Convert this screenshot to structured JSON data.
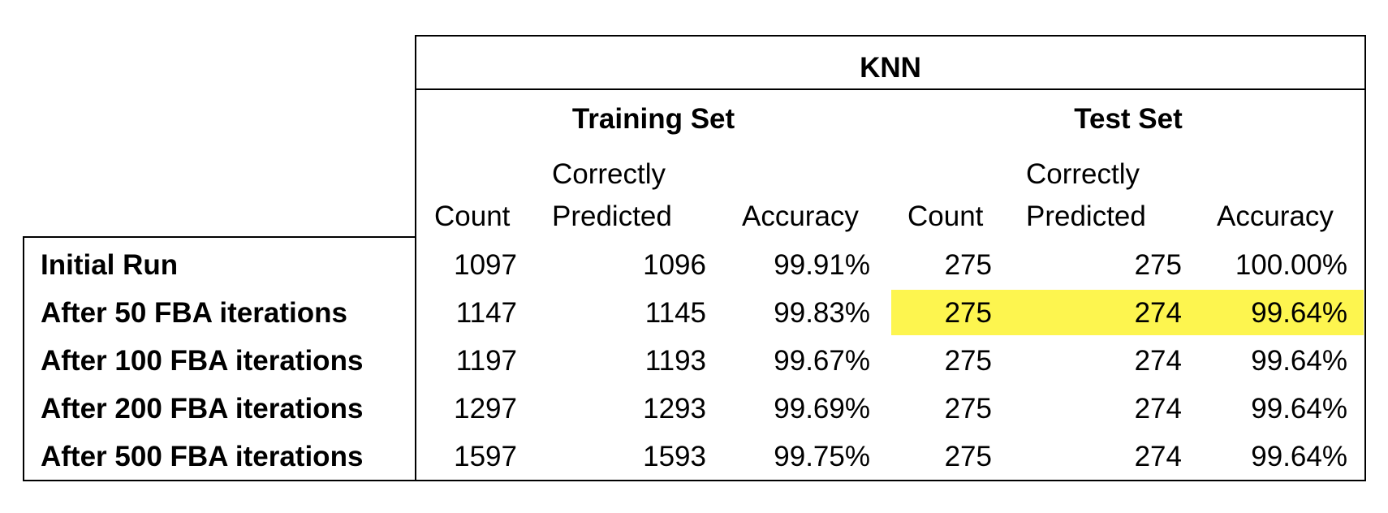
{
  "chart_data": {
    "type": "table",
    "title": "KNN",
    "groups": [
      "Training Set",
      "Test Set"
    ],
    "column_headers": [
      {
        "top": "",
        "bottom": "Count"
      },
      {
        "top": "Correctly",
        "bottom": "Predicted"
      },
      {
        "top": "",
        "bottom": "Accuracy"
      },
      {
        "top": "",
        "bottom": "Count"
      },
      {
        "top": "Correctly",
        "bottom": "Predicted"
      },
      {
        "top": "",
        "bottom": "Accuracy"
      }
    ],
    "rows": [
      {
        "label": "Initial Run",
        "cells": [
          "1097",
          "1096",
          "99.91%",
          "275",
          "275",
          "100.00%"
        ]
      },
      {
        "label": "After 50 FBA iterations",
        "cells": [
          "1147",
          "1145",
          "99.83%",
          "275",
          "274",
          "99.64%"
        ],
        "highlight_test_set": true
      },
      {
        "label": "After 100 FBA iterations",
        "cells": [
          "1197",
          "1193",
          "99.67%",
          "275",
          "274",
          "99.64%"
        ]
      },
      {
        "label": "After 200 FBA iterations",
        "cells": [
          "1297",
          "1293",
          "99.69%",
          "275",
          "274",
          "99.64%"
        ]
      },
      {
        "label": "After 500 FBA iterations",
        "cells": [
          "1597",
          "1593",
          "99.75%",
          "275",
          "274",
          "99.64%"
        ]
      }
    ],
    "highlight_color": "#fdf54f"
  }
}
